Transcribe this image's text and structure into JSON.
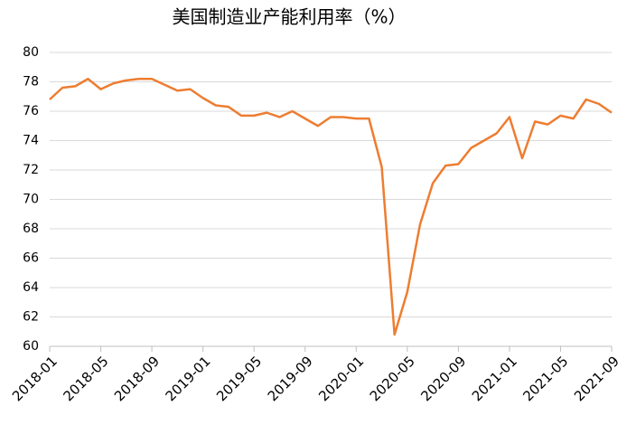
{
  "chart_data": {
    "type": "line",
    "title": "美国制造业产能利用率（%）",
    "categories": [
      "2018-01",
      null,
      null,
      null,
      "2018-05",
      null,
      null,
      null,
      "2018-09",
      null,
      null,
      null,
      "2019-01",
      null,
      null,
      null,
      "2019-05",
      null,
      null,
      null,
      "2019-09",
      null,
      null,
      null,
      "2020-01",
      null,
      null,
      null,
      "2020-05",
      null,
      null,
      null,
      "2020-09",
      null,
      null,
      null,
      "2021-01",
      null,
      null,
      null,
      "2021-05",
      null,
      null,
      null,
      "2021-09"
    ],
    "series": [
      {
        "name": "美国制造业产能利用率",
        "color": "#ed7d31",
        "values": [
          76.8,
          77.6,
          77.7,
          78.2,
          77.5,
          77.9,
          78.1,
          78.2,
          78.2,
          77.8,
          77.4,
          77.5,
          76.9,
          76.4,
          76.3,
          75.7,
          75.7,
          75.9,
          75.6,
          76.0,
          75.5,
          75.0,
          75.6,
          75.6,
          75.5,
          75.5,
          72.2,
          60.8,
          63.7,
          68.3,
          71.1,
          72.3,
          72.4,
          73.5,
          74.0,
          74.5,
          75.6,
          72.8,
          75.3,
          75.1,
          75.7,
          75.5,
          76.8,
          76.5,
          75.9
        ]
      }
    ],
    "ylim": [
      60,
      80
    ],
    "yticks": [
      60,
      62,
      64,
      66,
      68,
      70,
      72,
      74,
      76,
      78,
      80
    ],
    "grid": true
  }
}
